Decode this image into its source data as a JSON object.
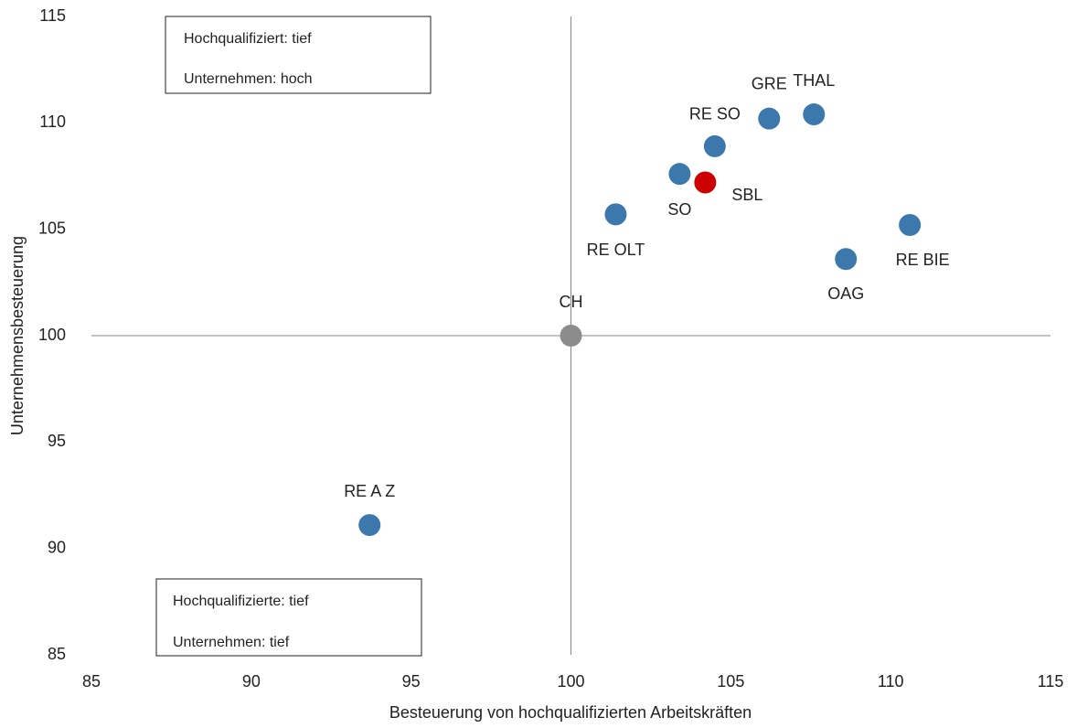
{
  "chart_data": {
    "type": "scatter",
    "xlabel": "Besteuerung von hochqualifizierten Arbeitskräften",
    "ylabel": "Unternehmensbesteuerung",
    "xlim": [
      85,
      115
    ],
    "xticks": [
      85,
      90,
      95,
      100,
      105,
      110,
      115
    ],
    "ylim": [
      85,
      115
    ],
    "yticks": [
      85,
      90,
      95,
      100,
      105,
      110,
      115
    ],
    "xref": 100,
    "yref": 100,
    "points": [
      {
        "label": "CH",
        "x": 100,
        "y": 100,
        "color": "#8c8c8c"
      },
      {
        "label": "RE A Z",
        "x": 93.7,
        "y": 91.1,
        "color": "#3d78ad"
      },
      {
        "label": "RE OLT",
        "x": 101.4,
        "y": 105.7,
        "color": "#3d78ad"
      },
      {
        "label": "SO",
        "x": 103.4,
        "y": 107.6,
        "color": "#3d78ad"
      },
      {
        "label": "SBL",
        "x": 104.2,
        "y": 107.2,
        "color": "#cc0000"
      },
      {
        "label": "RE SO",
        "x": 104.5,
        "y": 108.9,
        "color": "#3d78ad"
      },
      {
        "label": "GRE",
        "x": 106.2,
        "y": 110.2,
        "color": "#3d78ad"
      },
      {
        "label": "THAL",
        "x": 107.6,
        "y": 110.4,
        "color": "#3d78ad"
      },
      {
        "label": "RE BIE",
        "x": 110.6,
        "y": 105.2,
        "color": "#3d78ad"
      },
      {
        "label": "OAG",
        "x": 108.6,
        "y": 103.6,
        "color": "#3d78ad"
      }
    ],
    "annotations": [
      {
        "line1": "Hochqualifiziert: tief",
        "line2": "Unternehmen: hoch"
      },
      {
        "line1": "Hochqualifizierte: tief",
        "line2": "Unternehmen: tief"
      }
    ]
  }
}
